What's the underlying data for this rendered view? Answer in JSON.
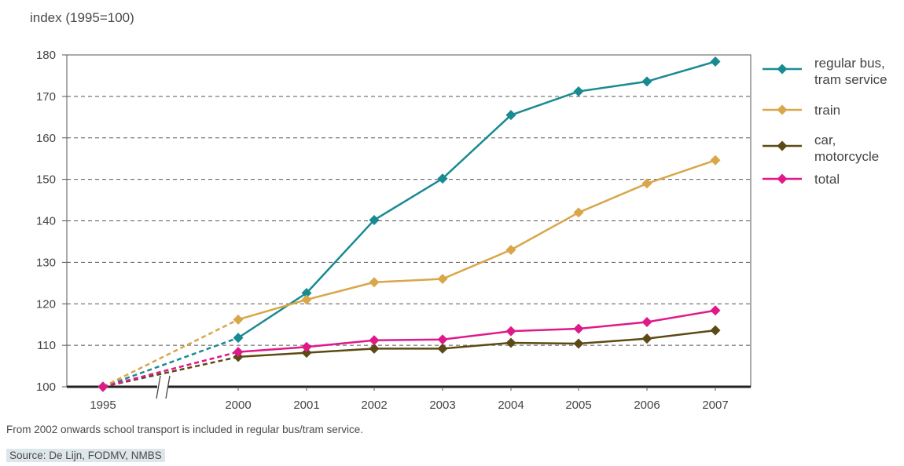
{
  "chart_data": {
    "type": "line",
    "ylabel": "index (1995=100)",
    "ylim": [
      100,
      180
    ],
    "yticks": [
      100,
      110,
      120,
      130,
      140,
      150,
      160,
      170,
      180
    ],
    "x": [
      "1995",
      "2000",
      "2001",
      "2002",
      "2003",
      "2004",
      "2005",
      "2006",
      "2007"
    ],
    "axis_break_between": [
      "1995",
      "2000"
    ],
    "grid": "horizontal dashed",
    "legend_position": "right",
    "series": [
      {
        "name": "regular bus,\ntram service",
        "color": "#1a8a92",
        "values": [
          100,
          111.8,
          122.6,
          140.2,
          150.2,
          165.5,
          171.2,
          173.6,
          178.4
        ]
      },
      {
        "name": "train",
        "color": "#d9a649",
        "values": [
          100,
          116.2,
          121.0,
          125.2,
          126.0,
          133.0,
          142.0,
          149.0,
          154.6
        ]
      },
      {
        "name": "car,\nmotorcycle",
        "color": "#5c4a14",
        "values": [
          100,
          107.2,
          108.2,
          109.2,
          109.2,
          110.6,
          110.4,
          111.6,
          113.6
        ]
      },
      {
        "name": "total",
        "color": "#e0198a",
        "values": [
          100,
          108.4,
          109.6,
          111.2,
          111.4,
          113.4,
          114.0,
          115.6,
          118.4
        ]
      }
    ],
    "dashed_segment": [
      "1995",
      "2000"
    ]
  },
  "footnote": "From 2002 onwards school transport is included in regular bus/tram service.",
  "source": "Source: De Lijn, FODMV, NMBS"
}
